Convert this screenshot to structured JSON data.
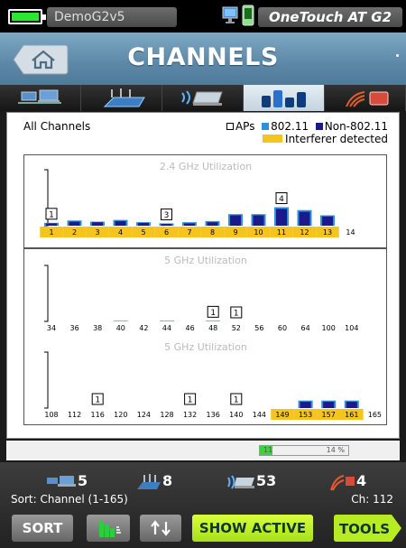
{
  "status": {
    "device_name": "DemoG2v5",
    "product_name": "OneTouch AT G2",
    "battery_color": "#2ee62e"
  },
  "title": "CHANNELS",
  "tabs": [
    {
      "name": "wired-wireless-tab",
      "icon": "network-devices-icon"
    },
    {
      "name": "access-points-tab",
      "icon": "access-point-icon"
    },
    {
      "name": "clients-tab",
      "icon": "wireless-client-icon"
    },
    {
      "name": "channels-tab",
      "icon": "channel-bars-icon",
      "active": true
    },
    {
      "name": "interferers-tab",
      "icon": "interferer-icon"
    }
  ],
  "legend": {
    "title": "All Channels",
    "aps": "APs",
    "wifi": "802.11",
    "non_wifi": "Non-802.11",
    "interferer": "Interferer detected"
  },
  "colors": {
    "wifi": "#2f8fd9",
    "non_wifi": "#1a1a8c",
    "interferer": "#f7c31e",
    "accent": "#a6e01a"
  },
  "chart_data": [
    {
      "type": "bar",
      "title": "2.4 GHz Utilization",
      "categories": [
        "1",
        "2",
        "3",
        "4",
        "5",
        "6",
        "7",
        "8",
        "9",
        "10",
        "11",
        "12",
        "13",
        "14"
      ],
      "series": [
        {
          "name": "802.11",
          "values": [
            5,
            9,
            7,
            10,
            6,
            4,
            6,
            8,
            20,
            20,
            32,
            27,
            18,
            0
          ]
        },
        {
          "name": "Non-802.11",
          "values": [
            4,
            7,
            6,
            8,
            5,
            3,
            4,
            6,
            18,
            18,
            29,
            24,
            16,
            0
          ]
        }
      ],
      "ap_counts": {
        "1": "1",
        "6": "3",
        "11": "4"
      },
      "interferer_channels": [
        "1",
        "2",
        "3",
        "4",
        "5",
        "6",
        "7",
        "8",
        "9",
        "10",
        "11",
        "12",
        "13"
      ],
      "ylim": [
        0,
        100
      ]
    },
    {
      "type": "bar",
      "title": "5 GHz Utilization",
      "categories": [
        "34",
        "36",
        "38",
        "40",
        "42",
        "44",
        "46",
        "48",
        "52",
        "56",
        "60",
        "64",
        "100",
        "104"
      ],
      "series": [
        {
          "name": "802.11",
          "values": [
            0,
            0,
            0,
            1,
            0,
            1,
            0,
            1,
            0,
            0,
            0,
            0,
            0,
            0
          ]
        },
        {
          "name": "Non-802.11",
          "values": [
            0,
            0,
            0,
            0,
            0,
            0,
            0,
            0,
            0,
            0,
            0,
            0,
            0,
            0
          ]
        }
      ],
      "ap_counts": {
        "48": "1",
        "52": "1"
      },
      "interferer_channels": [],
      "ylim": [
        0,
        100
      ]
    },
    {
      "type": "bar",
      "title": "5 GHz Utilization",
      "categories": [
        "108",
        "112",
        "116",
        "120",
        "124",
        "128",
        "132",
        "136",
        "140",
        "144",
        "149",
        "153",
        "157",
        "161",
        "165"
      ],
      "series": [
        {
          "name": "802.11",
          "values": [
            0,
            0,
            0,
            0,
            0,
            0,
            0,
            0,
            0,
            0,
            0,
            13,
            13,
            13,
            0
          ]
        },
        {
          "name": "Non-802.11",
          "values": [
            0,
            0,
            0,
            0,
            0,
            0,
            0,
            0,
            0,
            0,
            0,
            11,
            11,
            11,
            0
          ]
        }
      ],
      "ap_counts": {
        "116": "1",
        "132": "1",
        "140": "1"
      },
      "interferer_channels": [
        "149",
        "153",
        "157",
        "161"
      ],
      "ylim": [
        0,
        100
      ]
    }
  ],
  "strip": {
    "label": "11",
    "percent_label": "14 %",
    "fill": 0.14
  },
  "counts": {
    "wired": "5",
    "aps": "8",
    "clients": "53",
    "interferers": "4"
  },
  "sort_label": "Sort: Channel (1-165)",
  "channel_label": "Ch:  112",
  "buttons": {
    "sort": "SORT",
    "show_active": "SHOW ACTIVE",
    "tools": "TOOLS"
  }
}
